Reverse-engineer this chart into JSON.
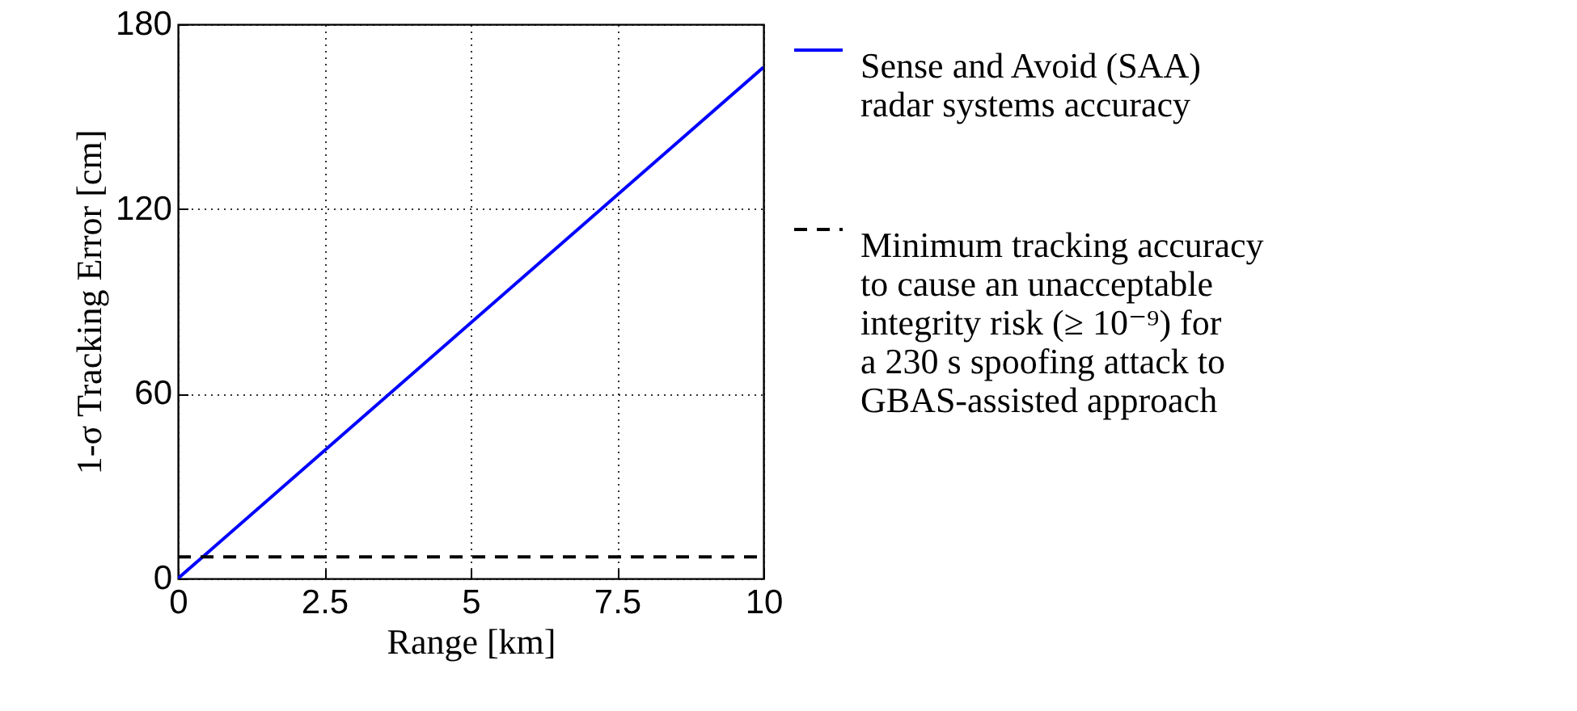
{
  "chart_data": {
    "type": "line",
    "xlabel": "Range [km]",
    "ylabel": "1-σ Tracking Error [cm]",
    "xlim": [
      0,
      10
    ],
    "ylim": [
      0,
      180
    ],
    "xticks": [
      0,
      2.5,
      5,
      7.5,
      10
    ],
    "yticks": [
      0,
      60,
      120,
      180
    ],
    "x": [
      0,
      10
    ],
    "grid": true,
    "legend": "right",
    "series": [
      {
        "name": "Sense and Avoid (SAA)\nradar systems accuracy",
        "color": "#0000ff",
        "line_style": "solid",
        "values": [
          0,
          166
        ]
      },
      {
        "name": "Minimum tracking accuracy\nto cause an unacceptable\nintegrity risk (≥ 10⁻⁹) for\na 230 s spoofing attack to\nGBAS-assisted approach",
        "color": "#000000",
        "line_style": "dashed",
        "values": [
          7,
          7
        ]
      }
    ]
  }
}
